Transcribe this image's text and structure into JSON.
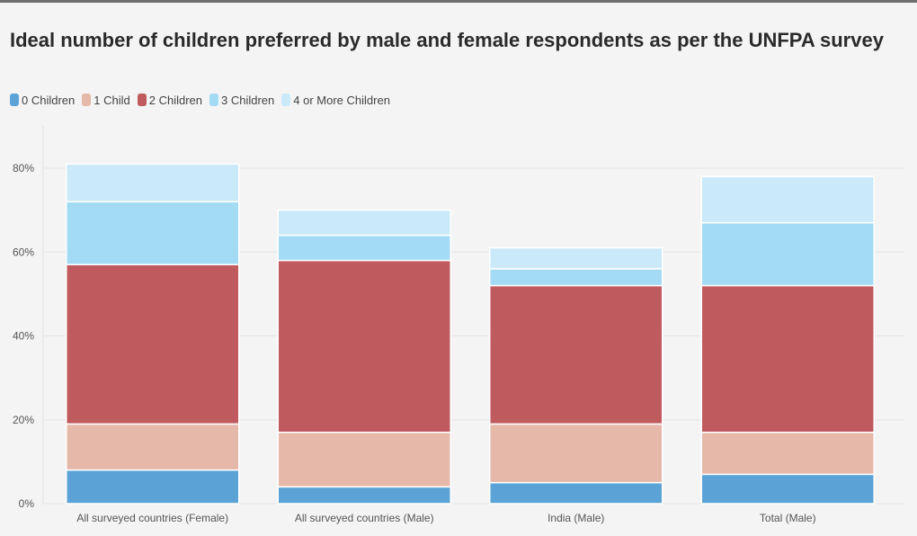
{
  "title": "Ideal number of children preferred by male and female respondents as per the UNFPA survey",
  "legend": [
    {
      "label": "0 Children",
      "color": "#5ba3d6"
    },
    {
      "label": "1 Child",
      "color": "#e6b8aa"
    },
    {
      "label": "2 Children",
      "color": "#bf5b5e"
    },
    {
      "label": "3 Children",
      "color": "#a3dbf5"
    },
    {
      "label": "4 or More Children",
      "color": "#cbeaf9"
    }
  ],
  "chart_data": {
    "type": "bar",
    "stacked": true,
    "categories": [
      "All surveyed countries (Female)",
      "All surveyed countries (Male)",
      "India (Male)",
      "Total (Male)"
    ],
    "series": [
      {
        "name": "0 Children",
        "values": [
          8,
          4,
          5,
          7
        ]
      },
      {
        "name": "1 Child",
        "values": [
          11,
          13,
          14,
          10
        ]
      },
      {
        "name": "2 Children",
        "values": [
          38,
          41,
          33,
          35
        ]
      },
      {
        "name": "3 Children",
        "values": [
          15,
          6,
          4,
          15
        ]
      },
      {
        "name": "4 or More Children",
        "values": [
          9,
          6,
          5,
          11
        ]
      }
    ],
    "ylim": [
      0,
      80
    ],
    "yticks": [
      "0%",
      "20%",
      "40%",
      "60%",
      "80%"
    ],
    "grid": true,
    "legend_position": "top-left"
  }
}
